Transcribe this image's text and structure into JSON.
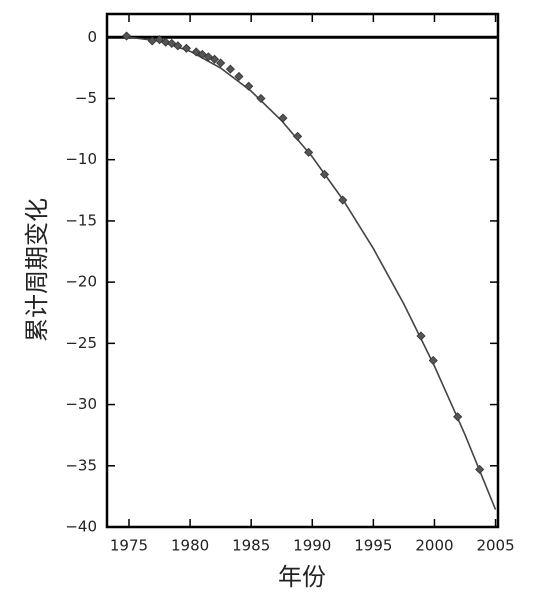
{
  "chart_data": {
    "type": "scatter",
    "x_label": "年份",
    "y_label": "累计周期变化",
    "xlim": [
      1973.2,
      2005.2
    ],
    "ylim": [
      -40,
      1.9
    ],
    "xticks": [
      1975,
      1980,
      1985,
      1990,
      1995,
      2000,
      2005
    ],
    "yticks": [
      0,
      {
        "value": -5,
        "label": "−5"
      },
      {
        "value": -10,
        "label": "−10"
      },
      {
        "value": -15,
        "label": "−15"
      },
      {
        "value": -20,
        "label": "−20"
      },
      {
        "value": -25,
        "label": "−25"
      },
      {
        "value": -30,
        "label": "−30"
      },
      {
        "value": -35,
        "label": "−35"
      },
      {
        "value": -40,
        "label": "−40"
      }
    ],
    "series": [
      {
        "type": "scatter",
        "color": "#555555",
        "x": [
          1974.8,
          1976.9,
          1977.5,
          1978,
          1978.5,
          1979,
          1979.7,
          1980.5,
          1981,
          1981.5,
          1982,
          1982.5,
          1983.3,
          1984,
          1984.8,
          1985.8,
          1987.6,
          1988.8,
          1989.7,
          1991,
          1992.5,
          1998.9,
          1999.9,
          2001.9,
          2003.7
        ],
        "values": [
          0.1,
          -0.3,
          -0.2,
          -0.4,
          -0.5,
          -0.7,
          -0.9,
          -1.2,
          -1.4,
          -1.6,
          -1.8,
          -2.1,
          -2.6,
          -3.2,
          -4,
          -5,
          -6.6,
          -8.1,
          -9.4,
          -11.2,
          -13.3,
          -24.4,
          -26.4,
          -31,
          -35.3
        ]
      },
      {
        "type": "line",
        "color": "#444444",
        "x": [
          1975,
          1977.5,
          1980,
          1982.5,
          1985,
          1987.5,
          1990,
          1992.5,
          1995,
          1997.5,
          2000,
          2002.5,
          2005
        ],
        "values": [
          0,
          -0.31,
          -1.14,
          -2.51,
          -4.4,
          -6.82,
          -9.77,
          -13.25,
          -17.26,
          -21.8,
          -26.86,
          -32.46,
          -38.58
        ]
      }
    ]
  }
}
